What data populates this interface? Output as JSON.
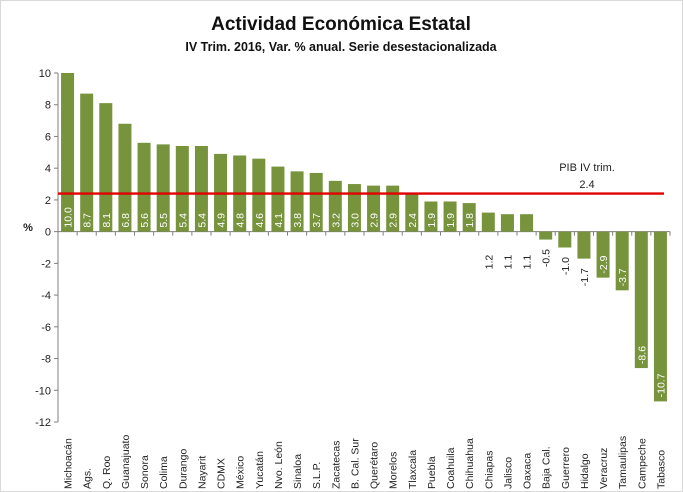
{
  "chart_data": {
    "type": "bar",
    "title": "Actividad Económica Estatal",
    "subtitle": "IV Trim. 2016, Var. % anual. Serie desestacionalizada",
    "ylabel": "%",
    "xlabel": "",
    "ylim": [
      -12,
      10
    ],
    "yticks": [
      10,
      8,
      6,
      4,
      2,
      0,
      -2,
      -4,
      -6,
      -8,
      -10,
      -12
    ],
    "grid": false,
    "categories": [
      "Michoacán",
      "Ags.",
      "Q. Roo",
      "Guanajuato",
      "Sonora",
      "Colima",
      "Durango",
      "Nayarit",
      "CDMX",
      "México",
      "Yucatán",
      "Nvo. León",
      "Sinaloa",
      "S.L.P.",
      "Zacatecas",
      "B. Cal. Sur",
      "Querétaro",
      "Morelos",
      "Tlaxcala",
      "Puebla",
      "Coahuila",
      "Chihuahua",
      "Chiapas",
      "Jalisco",
      "Oaxaca",
      "Baja Cal.",
      "Guerrero",
      "Hidalgo",
      "Veracruz",
      "Tamaulipas",
      "Campeche",
      "Tabasco"
    ],
    "values": [
      10.0,
      8.7,
      8.1,
      6.8,
      5.6,
      5.5,
      5.4,
      5.4,
      4.9,
      4.8,
      4.6,
      4.1,
      3.8,
      3.7,
      3.2,
      3.0,
      2.9,
      2.9,
      2.4,
      1.9,
      1.9,
      1.8,
      1.2,
      1.1,
      1.1,
      -0.5,
      -1.0,
      -1.7,
      -2.9,
      -3.7,
      -8.6,
      -10.7
    ],
    "data_labels": [
      "10.0",
      "8.7",
      "8.1",
      "6.8",
      "5.6",
      "5.5",
      "5.4",
      "5.4",
      "4.9",
      "4.8",
      "4.6",
      "4.1",
      "3.8",
      "3.7",
      "3.2",
      "3.0",
      "2.9",
      "2.9",
      "2.4",
      "1.9",
      "1.9",
      "1.8",
      "1.2",
      "1.1",
      "1.1",
      "-0.5",
      "-1.0",
      "-1.7",
      "-2.9",
      "-3.7",
      "-8.6",
      "-10.7"
    ],
    "reference_line": {
      "value": 2.4,
      "label_line1": "PIB IV trim.",
      "label_line2": "2.4",
      "color": "#e00000"
    },
    "bar_color": "#77933c"
  }
}
